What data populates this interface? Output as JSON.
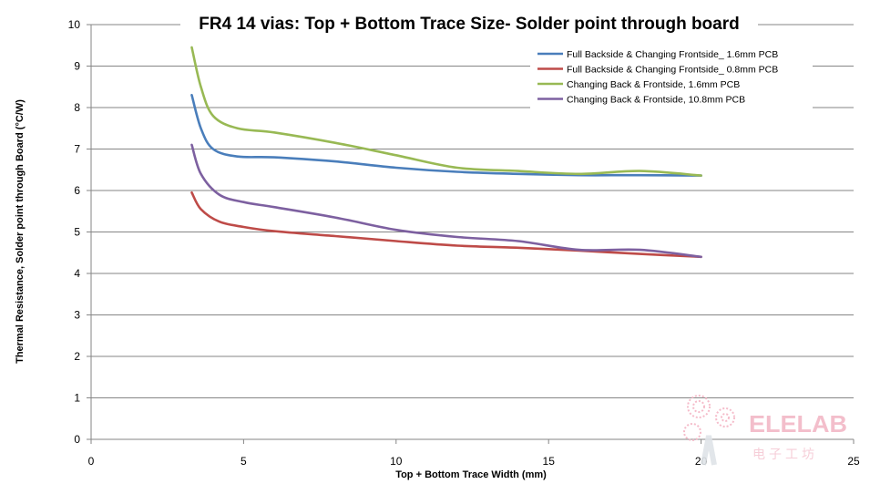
{
  "chart_data": {
    "type": "line",
    "title": "FR4 14 vias: Top + Bottom Trace Size- Solder point through board",
    "xlabel": "Top + Bottom Trace Width (mm)",
    "ylabel": "Thermal Resistance, Solder point through Board (°C/W)",
    "xlim": [
      0,
      25
    ],
    "ylim": [
      0,
      10
    ],
    "x_ticks": [
      "0",
      "5",
      "10",
      "15",
      "20",
      "25"
    ],
    "y_ticks": [
      "0",
      "1",
      "2",
      "3",
      "4",
      "5",
      "6",
      "7",
      "8",
      "9",
      "10"
    ],
    "grid": "horizontal",
    "legend_position": "top-right",
    "series": [
      {
        "name": "Full Backside & Changing Frontside_ 1.6mm PCB",
        "color": "#4a7ebb",
        "points": [
          [
            3.3,
            8.3
          ],
          [
            3.6,
            7.5
          ],
          [
            4.0,
            7.0
          ],
          [
            4.8,
            6.82
          ],
          [
            6.0,
            6.8
          ],
          [
            8.0,
            6.7
          ],
          [
            10.0,
            6.55
          ],
          [
            12.0,
            6.45
          ],
          [
            14.0,
            6.4
          ],
          [
            16.0,
            6.37
          ],
          [
            18.0,
            6.37
          ],
          [
            20.0,
            6.36
          ]
        ]
      },
      {
        "name": "Full Backside & Changing Frontside_ 0.8mm PCB",
        "color": "#be4b48",
        "points": [
          [
            3.3,
            5.95
          ],
          [
            3.6,
            5.55
          ],
          [
            4.2,
            5.25
          ],
          [
            5.0,
            5.12
          ],
          [
            6.0,
            5.02
          ],
          [
            8.0,
            4.9
          ],
          [
            10.0,
            4.78
          ],
          [
            12.0,
            4.67
          ],
          [
            14.0,
            4.62
          ],
          [
            16.0,
            4.55
          ],
          [
            18.0,
            4.47
          ],
          [
            20.0,
            4.4
          ]
        ]
      },
      {
        "name": "Changing Back & Frontside, 1.6mm PCB",
        "color": "#98b954",
        "points": [
          [
            3.3,
            9.45
          ],
          [
            3.6,
            8.5
          ],
          [
            4.0,
            7.8
          ],
          [
            4.8,
            7.5
          ],
          [
            6.0,
            7.4
          ],
          [
            8.0,
            7.15
          ],
          [
            10.0,
            6.85
          ],
          [
            12.0,
            6.55
          ],
          [
            14.0,
            6.47
          ],
          [
            16.0,
            6.4
          ],
          [
            18.0,
            6.47
          ],
          [
            20.0,
            6.36
          ]
        ]
      },
      {
        "name": "Changing Back & Frontside, 10.8mm PCB",
        "color": "#7d60a0",
        "points": [
          [
            3.3,
            7.1
          ],
          [
            3.6,
            6.4
          ],
          [
            4.2,
            5.9
          ],
          [
            5.0,
            5.72
          ],
          [
            6.0,
            5.6
          ],
          [
            8.0,
            5.35
          ],
          [
            10.0,
            5.05
          ],
          [
            12.0,
            4.88
          ],
          [
            14.0,
            4.78
          ],
          [
            16.0,
            4.57
          ],
          [
            18.0,
            4.57
          ],
          [
            20.0,
            4.4
          ]
        ]
      }
    ]
  },
  "watermark": {
    "brand": "ELELAB",
    "sub": "电子工坊"
  }
}
